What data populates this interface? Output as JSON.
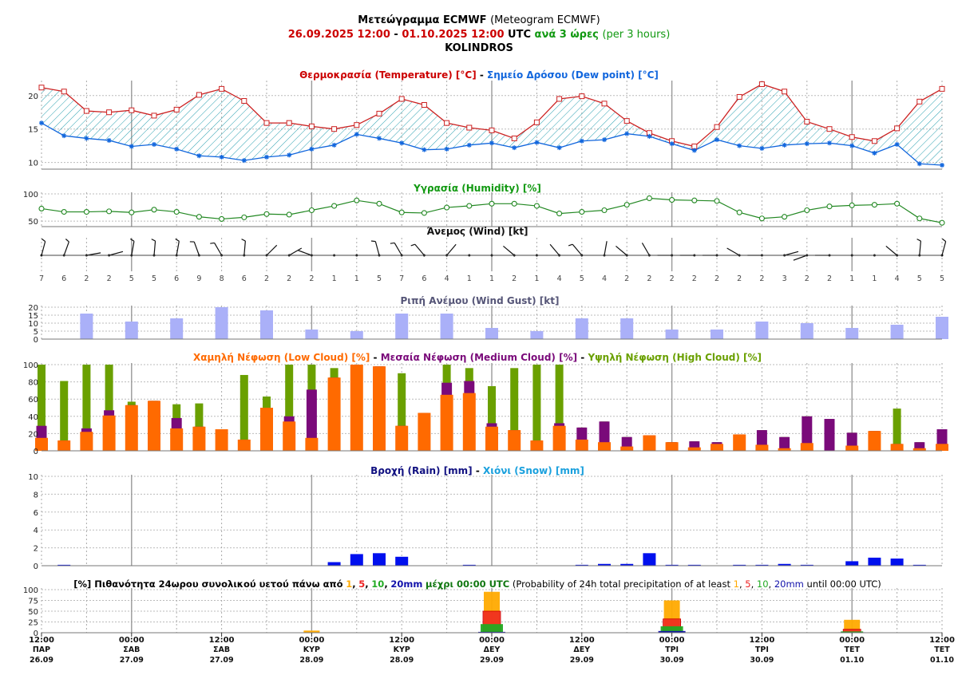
{
  "header": {
    "title_gr": "Μετεώγραμμα ECMWF",
    "title_en": "(Meteogram ECMWF)",
    "date_from": "26.09.2025 12:00",
    "sep": "-",
    "date_to": "01.10.2025 12:00",
    "utc": "UTC",
    "step_gr": "ανά 3 ώρες",
    "step_en": "(per 3 hours)",
    "location": "KOLINDROS"
  },
  "colors": {
    "temperature": "#cc2222",
    "dewpoint": "#1166dd",
    "humidity": "#228822",
    "gust": "#aab0f8",
    "low_cloud": "#ff6a00",
    "medium_cloud": "#7a0a7a",
    "high_cloud": "#6aa000",
    "rain": "#0010ee",
    "p1": "#ffaa00",
    "p5": "#ee2222",
    "p10": "#22aa22",
    "p20": "#1111aa"
  },
  "titles": {
    "temp_gr": "Θερμοκρασία (Temperature) [°C]",
    "sep": "-",
    "dew_gr": "Σημείο Δρόσου (Dew point) [°C]",
    "humidity": "Υγρασία (Humidity) [%]",
    "wind": "Άνεμος (Wind) [kt]",
    "gust": "Ριπή Ανέμου (Wind Gust) [kt]",
    "low_cloud": "Χαμηλή Νέφωση (Low Cloud) [%]",
    "medium_cloud": "Μεσαία Νέφωση (Medium Cloud) [%]",
    "high_cloud": "Υψηλή Νέφωση (High Cloud) [%]",
    "rain": "Βροχή (Rain) [mm]",
    "snow": "Χιόνι (Snow) [mm]",
    "prob_a": "[%] Πιθανότητα 24ωρου συνολικού υετού πάνω από",
    "prob_n1": "1",
    "prob_c1": ",",
    "prob_n5": "5",
    "prob_c2": ",",
    "prob_n10": "10",
    "prob_c3": ",",
    "prob_n20": "20mm",
    "prob_b": "μέχρι 00:00 UTC",
    "prob_c": "(Probability of 24h total precipitation of at least",
    "prob_d": "until 00:00 UTC)"
  },
  "x_axis": {
    "times": [
      "12:00",
      "00:00",
      "12:00",
      "00:00",
      "12:00",
      "00:00",
      "12:00",
      "00:00",
      "12:00",
      "00:00",
      "12:00"
    ],
    "days": [
      "ΠΑΡ",
      "ΣΑΒ",
      "ΣΑΒ",
      "ΚΥΡ",
      "ΚΥΡ",
      "ΔΕΥ",
      "ΔΕΥ",
      "ΤΡΙ",
      "ΤΡΙ",
      "ΤΕΤ",
      "ΤΕΤ"
    ],
    "dates": [
      "26.09",
      "27.09",
      "27.09",
      "28.09",
      "28.09",
      "29.09",
      "29.09",
      "30.09",
      "30.09",
      "01.10",
      "01.10"
    ]
  },
  "chart_data": [
    {
      "type": "line",
      "title": "Θερμοκρασία (Temperature) [°C] - Σημείο Δρόσου (Dew point) [°C]",
      "x_step_hours": 3,
      "ylim": [
        9,
        22
      ],
      "yticks": [
        10,
        15,
        20
      ],
      "series": [
        {
          "name": "Θερμοκρασία (Temperature) [°C]",
          "values": [
            21.2,
            20.6,
            17.7,
            17.5,
            17.8,
            17.0,
            17.9,
            20.1,
            21.0,
            19.2,
            15.9,
            15.9,
            15.4,
            15.0,
            15.6,
            17.3,
            19.5,
            18.6,
            15.9,
            15.2,
            14.8,
            13.6,
            16.0,
            19.5,
            19.9,
            18.8,
            16.2,
            14.4,
            13.2,
            12.4,
            15.3,
            19.8,
            21.7,
            20.6,
            16.1,
            15.0,
            13.8,
            13.2,
            15.1,
            19.1,
            21.0
          ]
        },
        {
          "name": "Σημείο Δρόσου (Dew point) [°C]",
          "values": [
            15.9,
            14.0,
            13.6,
            13.3,
            12.4,
            12.7,
            12.0,
            11.0,
            10.8,
            10.3,
            10.8,
            11.1,
            12.0,
            12.6,
            14.2,
            13.6,
            12.9,
            11.9,
            12.0,
            12.6,
            12.9,
            12.2,
            13.0,
            12.2,
            13.2,
            13.4,
            14.3,
            13.9,
            12.8,
            11.8,
            13.4,
            12.5,
            12.1,
            12.6,
            12.8,
            12.9,
            12.5,
            11.4,
            12.7,
            9.8,
            9.6
          ]
        }
      ]
    },
    {
      "type": "line",
      "title": "Υγρασία (Humidity) [%]",
      "ylim": [
        40,
        100
      ],
      "yticks": [
        50,
        100
      ],
      "values": [
        73,
        67,
        67,
        68,
        66,
        71,
        67,
        58,
        54,
        57,
        63,
        62,
        70,
        78,
        88,
        82,
        66,
        65,
        75,
        78,
        82,
        82,
        78,
        64,
        67,
        70,
        80,
        92,
        89,
        88,
        87,
        66,
        55,
        58,
        70,
        77,
        79,
        80,
        82,
        55,
        47
      ]
    },
    {
      "type": "wind_barbs",
      "title": "Άνεμος (Wind) [kt]",
      "speeds_kt": [
        7,
        6,
        2,
        2,
        5,
        5,
        6,
        9,
        8,
        6,
        2,
        2,
        2,
        1,
        1,
        5,
        7,
        6,
        4,
        1,
        1,
        2,
        1,
        4,
        5,
        4,
        2,
        2,
        2,
        2,
        2,
        2,
        2,
        3,
        2,
        2,
        1,
        1,
        4,
        5,
        5
      ],
      "directions_deg": [
        15,
        20,
        80,
        75,
        10,
        5,
        10,
        340,
        330,
        5,
        45,
        60,
        290,
        0,
        0,
        345,
        330,
        320,
        40,
        0,
        300,
        310,
        300,
        320,
        320,
        10,
        310,
        330,
        270,
        270,
        270,
        300,
        270,
        75,
        250,
        270,
        270,
        270,
        310,
        5,
        15
      ]
    },
    {
      "type": "bar",
      "title": "Ριπή Ανέμου (Wind Gust) [kt]",
      "ylim": [
        0,
        20
      ],
      "yticks": [
        0,
        5,
        10,
        15,
        20
      ],
      "x_index": [
        2,
        4,
        6,
        8,
        10,
        12,
        14,
        16,
        18,
        20,
        22,
        24,
        26,
        28,
        30,
        32,
        34,
        36,
        38,
        40
      ],
      "values": [
        16,
        11,
        13,
        20,
        18,
        6,
        5,
        16,
        16,
        7,
        5,
        13,
        13,
        6,
        6,
        11,
        10,
        7,
        9,
        14
      ]
    },
    {
      "type": "bar",
      "title": "Χαμηλή Νέφωση (Low Cloud) [%] - Μεσαία Νέφωση (Medium Cloud) [%] - Υψηλή Νέφωση (High Cloud) [%]",
      "ylim": [
        0,
        100
      ],
      "yticks": [
        0,
        20,
        40,
        60,
        80,
        100
      ],
      "series": [
        {
          "name": "Χαμηλή Νέφωση (Low Cloud) [%]",
          "values": [
            15,
            12,
            22,
            41,
            53,
            58,
            26,
            28,
            25,
            13,
            50,
            34,
            15,
            85,
            100,
            98,
            29,
            44,
            65,
            67,
            28,
            24,
            12,
            29,
            13,
            10,
            5,
            18,
            10,
            4,
            8,
            19,
            7,
            3,
            9,
            0,
            6,
            23,
            8,
            3,
            8
          ]
        },
        {
          "name": "Μεσαία Νέφωση (Medium Cloud) [%]",
          "values": [
            29,
            12,
            26,
            47,
            53,
            58,
            38,
            28,
            25,
            13,
            50,
            40,
            71,
            85,
            100,
            98,
            29,
            44,
            79,
            81,
            32,
            24,
            12,
            32,
            27,
            34,
            16,
            18,
            10,
            11,
            10,
            19,
            24,
            16,
            40,
            37,
            21,
            23,
            8,
            10,
            25
          ]
        },
        {
          "name": "Υψηλή Νέφωση (High Cloud) [%]",
          "values": [
            100,
            81,
            100,
            100,
            57,
            58,
            54,
            55,
            25,
            88,
            63,
            100,
            100,
            96,
            100,
            98,
            90,
            44,
            100,
            96,
            75,
            96,
            100,
            100,
            27,
            34,
            16,
            18,
            10,
            11,
            10,
            19,
            24,
            16,
            40,
            37,
            21,
            23,
            49,
            10,
            25
          ]
        }
      ]
    },
    {
      "type": "bar",
      "title": "Βροχή (Rain) [mm] - Χιόνι (Snow) [mm]",
      "ylim": [
        0,
        10
      ],
      "yticks": [
        0,
        2,
        4,
        6,
        8,
        10
      ],
      "series": [
        {
          "name": "Βροχή (Rain) [mm]",
          "values": [
            0,
            0.1,
            0,
            0,
            0,
            0,
            0,
            0,
            0,
            0,
            0,
            0,
            0,
            0.4,
            1.3,
            1.4,
            1.0,
            0,
            0,
            0.1,
            0,
            0,
            0,
            0,
            0.1,
            0.2,
            0.2,
            1.4,
            0.1,
            0.1,
            0,
            0.1,
            0.1,
            0.2,
            0.1,
            0,
            0.5,
            0.9,
            0.8,
            0.1,
            0
          ]
        },
        {
          "name": "Χιόνι (Snow) [mm]",
          "values": [
            0,
            0,
            0,
            0,
            0,
            0,
            0,
            0,
            0,
            0,
            0,
            0,
            0,
            0,
            0,
            0,
            0,
            0,
            0,
            0,
            0,
            0,
            0,
            0,
            0,
            0,
            0,
            0,
            0,
            0,
            0,
            0,
            0,
            0,
            0,
            0,
            0,
            0,
            0,
            0,
            0
          ]
        }
      ]
    },
    {
      "type": "bar",
      "title": "[%] Πιθανότητα 24ωρου συνολικού υετού πάνω από 1, 5, 10, 20mm μέχρι 00:00 UTC",
      "ylim": [
        0,
        100
      ],
      "yticks": [
        0,
        25,
        50,
        75,
        100
      ],
      "categories": [
        "28.09 00:00",
        "29.09 00:00",
        "30.09 00:00",
        "01.10 00:00"
      ],
      "x_index": [
        12,
        20,
        28,
        36
      ],
      "series": [
        {
          "name": "1",
          "values": [
            5,
            95,
            75,
            30
          ]
        },
        {
          "name": "5",
          "values": [
            0,
            50,
            32,
            8
          ]
        },
        {
          "name": "10",
          "values": [
            0,
            20,
            15,
            3
          ]
        },
        {
          "name": "20mm",
          "values": [
            0,
            2,
            4,
            1
          ]
        }
      ]
    }
  ]
}
